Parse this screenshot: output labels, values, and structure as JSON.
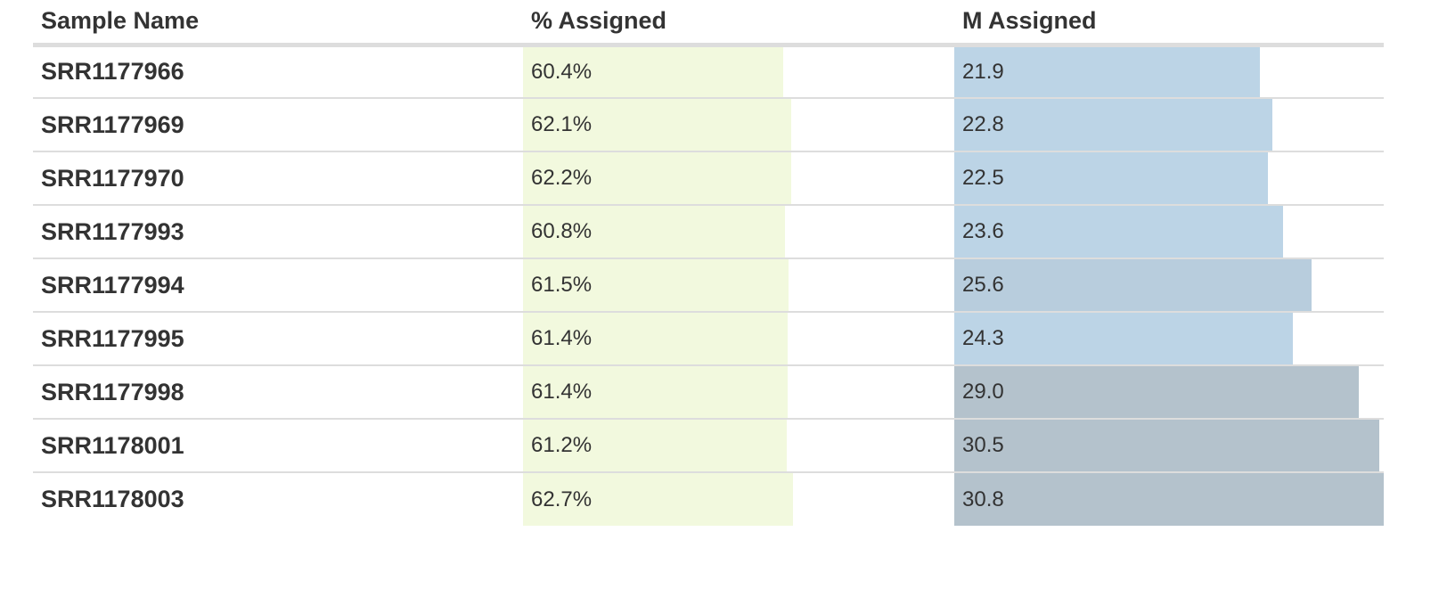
{
  "table": {
    "headers": [
      "Sample Name",
      "% Assigned",
      "M Assigned"
    ],
    "colors": {
      "pct_bar": "#f2f9de",
      "m_bar_low": "#bcd4e6",
      "m_bar_mid": "#b8cddd",
      "m_bar_high": "#b4c2cc"
    },
    "pct_scale_max": 100,
    "m_scale_max": 30.8,
    "rows": [
      {
        "name": "SRR1177966",
        "pct": "60.4%",
        "pct_value": 60.4,
        "m": "21.9",
        "m_value": 21.9
      },
      {
        "name": "SRR1177969",
        "pct": "62.1%",
        "pct_value": 62.1,
        "m": "22.8",
        "m_value": 22.8
      },
      {
        "name": "SRR1177970",
        "pct": "62.2%",
        "pct_value": 62.2,
        "m": "22.5",
        "m_value": 22.5
      },
      {
        "name": "SRR1177993",
        "pct": "60.8%",
        "pct_value": 60.8,
        "m": "23.6",
        "m_value": 23.6
      },
      {
        "name": "SRR1177994",
        "pct": "61.5%",
        "pct_value": 61.5,
        "m": "25.6",
        "m_value": 25.6
      },
      {
        "name": "SRR1177995",
        "pct": "61.4%",
        "pct_value": 61.4,
        "m": "24.3",
        "m_value": 24.3
      },
      {
        "name": "SRR1177998",
        "pct": "61.4%",
        "pct_value": 61.4,
        "m": "29.0",
        "m_value": 29.0
      },
      {
        "name": "SRR1178001",
        "pct": "61.2%",
        "pct_value": 61.2,
        "m": "30.5",
        "m_value": 30.5
      },
      {
        "name": "SRR1178003",
        "pct": "62.7%",
        "pct_value": 62.7,
        "m": "30.8",
        "m_value": 30.8
      }
    ]
  }
}
